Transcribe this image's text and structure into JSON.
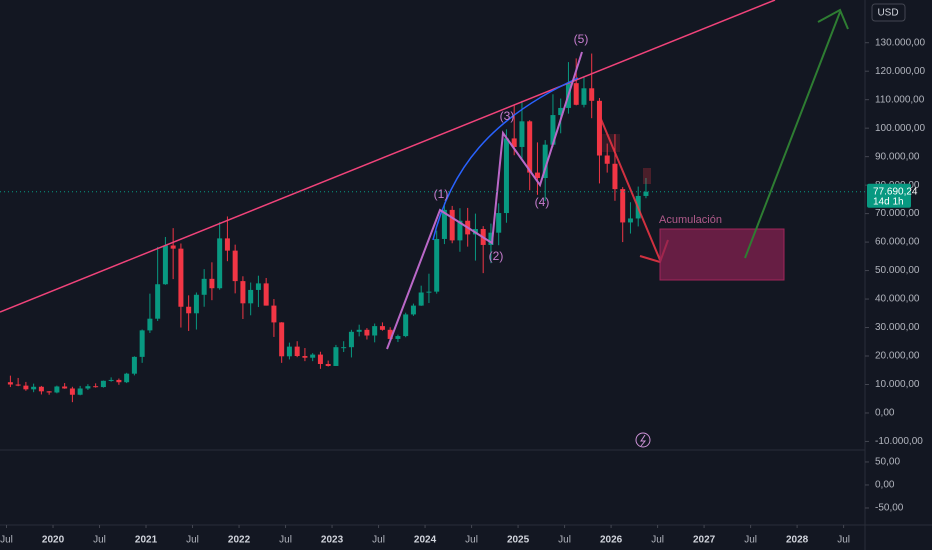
{
  "chart_data": {
    "type": "candlestick",
    "currency": "USD",
    "up_color": "#089981",
    "down_color": "#f23645",
    "grid": false,
    "x": [
      "2019-07",
      "2019-08",
      "2019-09",
      "2019-10",
      "2019-11",
      "2019-12",
      "2020-01",
      "2020-02",
      "2020-03",
      "2020-04",
      "2020-05",
      "2020-06",
      "2020-07",
      "2020-08",
      "2020-09",
      "2020-10",
      "2020-11",
      "2020-12",
      "2021-01",
      "2021-02",
      "2021-03",
      "2021-04",
      "2021-05",
      "2021-06",
      "2021-07",
      "2021-08",
      "2021-09",
      "2021-10",
      "2021-11",
      "2021-12",
      "2022-01",
      "2022-02",
      "2022-03",
      "2022-04",
      "2022-05",
      "2022-06",
      "2022-07",
      "2022-08",
      "2022-09",
      "2022-10",
      "2022-11",
      "2022-12",
      "2023-01",
      "2023-02",
      "2023-03",
      "2023-04",
      "2023-05",
      "2023-06",
      "2023-07",
      "2023-08",
      "2023-09",
      "2023-10",
      "2023-11",
      "2023-12",
      "2024-01",
      "2024-02",
      "2024-03",
      "2024-04",
      "2024-05",
      "2024-06",
      "2024-07",
      "2024-08",
      "2024-09",
      "2024-10",
      "2024-11",
      "2024-12",
      "2025-01",
      "2025-02",
      "2025-03",
      "2025-04",
      "2025-05",
      "2025-06",
      "2025-07",
      "2025-08",
      "2025-09",
      "2025-10",
      "2025-11",
      "2025-12",
      "2026-01",
      "2026-02",
      "2026-03",
      "2026-04",
      "2026-05"
    ],
    "open": [
      10800,
      10000,
      9600,
      8300,
      9200,
      7600,
      7200,
      9300,
      8600,
      6400,
      8600,
      9400,
      9100,
      11300,
      11600,
      10800,
      13800,
      19700,
      29000,
      33100,
      45200,
      58800,
      57700,
      37300,
      35000,
      41500,
      47100,
      43800,
      61300,
      57000,
      46300,
      38500,
      43200,
      45500,
      37700,
      31800,
      19900,
      23300,
      20000,
      19400,
      20500,
      17200,
      16500,
      23100,
      23100,
      28500,
      29200,
      27200,
      30500,
      29200,
      26000,
      27000,
      34600,
      37700,
      42300,
      42600,
      61100,
      71300,
      60600,
      67500,
      62700,
      64600,
      59000,
      63300,
      70200,
      96400,
      93400,
      102400,
      84400,
      82500,
      94200,
      104600,
      107100,
      115800,
      108200,
      114000,
      109600,
      90400,
      87500,
      78600,
      66900,
      68300,
      76200
    ],
    "high": [
      13100,
      12300,
      10900,
      10300,
      9500,
      7700,
      9600,
      10500,
      9200,
      9500,
      10100,
      10400,
      11400,
      12500,
      12100,
      14100,
      19900,
      29300,
      41900,
      58300,
      61800,
      64900,
      59500,
      41300,
      42300,
      50500,
      52900,
      67000,
      69000,
      59100,
      48000,
      45800,
      48200,
      47400,
      40000,
      31900,
      24700,
      25200,
      22800,
      21000,
      21500,
      18400,
      23900,
      25200,
      29200,
      31000,
      29800,
      31400,
      31800,
      30100,
      27500,
      35200,
      38400,
      44700,
      48900,
      64000,
      73800,
      72700,
      71900,
      72000,
      70000,
      65600,
      66500,
      73600,
      99600,
      108300,
      109600,
      102800,
      95000,
      95800,
      111900,
      110400,
      123200,
      124500,
      117900,
      126200,
      110600,
      94600,
      97900,
      79300,
      74000,
      79500,
      82500
    ],
    "low": [
      9100,
      9400,
      7800,
      7300,
      6500,
      6400,
      6900,
      8500,
      3800,
      6200,
      8100,
      8900,
      8900,
      11000,
      9900,
      10500,
      13200,
      17600,
      28100,
      32300,
      45000,
      47000,
      30000,
      28800,
      29300,
      37300,
      39600,
      43300,
      53300,
      42000,
      33000,
      34300,
      37200,
      37700,
      26700,
      17600,
      18800,
      19600,
      18200,
      18200,
      15500,
      16300,
      16500,
      21400,
      19500,
      26900,
      25800,
      24800,
      28900,
      25200,
      24900,
      26600,
      34100,
      37600,
      38600,
      41900,
      59300,
      59600,
      56600,
      58400,
      53500,
      49100,
      52600,
      58900,
      66800,
      90500,
      89200,
      78200,
      76600,
      74400,
      93400,
      98200,
      105100,
      108000,
      107300,
      103500,
      80600,
      84400,
      74500,
      60000,
      63000,
      65500,
      75400
    ],
    "close": [
      10000,
      9600,
      8300,
      9200,
      7600,
      7200,
      9300,
      8600,
      6400,
      8600,
      9400,
      9100,
      11300,
      11600,
      10800,
      13800,
      19700,
      29000,
      33100,
      45200,
      58800,
      57700,
      37300,
      35000,
      41500,
      47100,
      43800,
      61300,
      57000,
      46300,
      38500,
      43200,
      45500,
      37700,
      31800,
      19900,
      23300,
      20000,
      19400,
      20500,
      17200,
      16500,
      23100,
      23100,
      28500,
      29200,
      27200,
      30500,
      29200,
      26000,
      27000,
      34600,
      37700,
      42300,
      42600,
      61100,
      71300,
      60600,
      67500,
      62700,
      64600,
      59000,
      63300,
      70200,
      96400,
      93400,
      102400,
      84400,
      82500,
      94200,
      104600,
      107100,
      115800,
      108200,
      114000,
      109600,
      90400,
      87500,
      78600,
      66900,
      68300,
      76200,
      77690.24
    ],
    "last_price": {
      "value": 77690.24,
      "label": "77.690,24"
    },
    "countdown": "14d 1h",
    "xlim": [
      2019.43,
      2028.73
    ],
    "xticks": [
      {
        "value": 2019.5,
        "label": "Jul"
      },
      {
        "value": 2020,
        "label": "2020"
      },
      {
        "value": 2020.5,
        "label": "Jul"
      },
      {
        "value": 2021,
        "label": "2021"
      },
      {
        "value": 2021.5,
        "label": "Jul"
      },
      {
        "value": 2022,
        "label": "2022"
      },
      {
        "value": 2022.5,
        "label": "Jul"
      },
      {
        "value": 2023,
        "label": "2023"
      },
      {
        "value": 2023.5,
        "label": "Jul"
      },
      {
        "value": 2024,
        "label": "2024"
      },
      {
        "value": 2024.5,
        "label": "Jul"
      },
      {
        "value": 2025,
        "label": "2025"
      },
      {
        "value": 2025.5,
        "label": "Jul"
      },
      {
        "value": 2026,
        "label": "2026"
      },
      {
        "value": 2026.5,
        "label": "Jul"
      },
      {
        "value": 2027,
        "label": "2027"
      },
      {
        "value": 2027.5,
        "label": "Jul"
      },
      {
        "value": 2028,
        "label": "2028"
      },
      {
        "value": 2028.5,
        "label": "Jul"
      }
    ],
    "ylim": [
      -13000,
      145000
    ],
    "yticks": [
      {
        "value": -10000,
        "label": "-10.000,00"
      },
      {
        "value": 0,
        "label": "0,00"
      },
      {
        "value": 10000,
        "label": "10.000,00"
      },
      {
        "value": 20000,
        "label": "20.000,00"
      },
      {
        "value": 30000,
        "label": "30.000,00"
      },
      {
        "value": 40000,
        "label": "40.000,00"
      },
      {
        "value": 50000,
        "label": "50.000,00"
      },
      {
        "value": 60000,
        "label": "60.000,00"
      },
      {
        "value": 70000,
        "label": "70.000,00"
      },
      {
        "value": 80000,
        "label": "80.000,00"
      },
      {
        "value": 90000,
        "label": "90.000,00"
      },
      {
        "value": 100000,
        "label": "100.000,00"
      },
      {
        "value": 110000,
        "label": "110.000,00"
      },
      {
        "value": 120000,
        "label": "120.000,00"
      },
      {
        "value": 130000,
        "label": "130.000,00"
      }
    ],
    "indicator_pane": {
      "ylim": [
        -87,
        76
      ],
      "yticks": [
        {
          "value": 50,
          "label": "50,00"
        },
        {
          "value": 0,
          "label": "0,00"
        },
        {
          "value": -50,
          "label": "-50,00"
        }
      ]
    },
    "annotations": [
      "(1)",
      "(2)",
      "(3)",
      "(4)",
      "(5)",
      "Acumulación"
    ]
  }
}
